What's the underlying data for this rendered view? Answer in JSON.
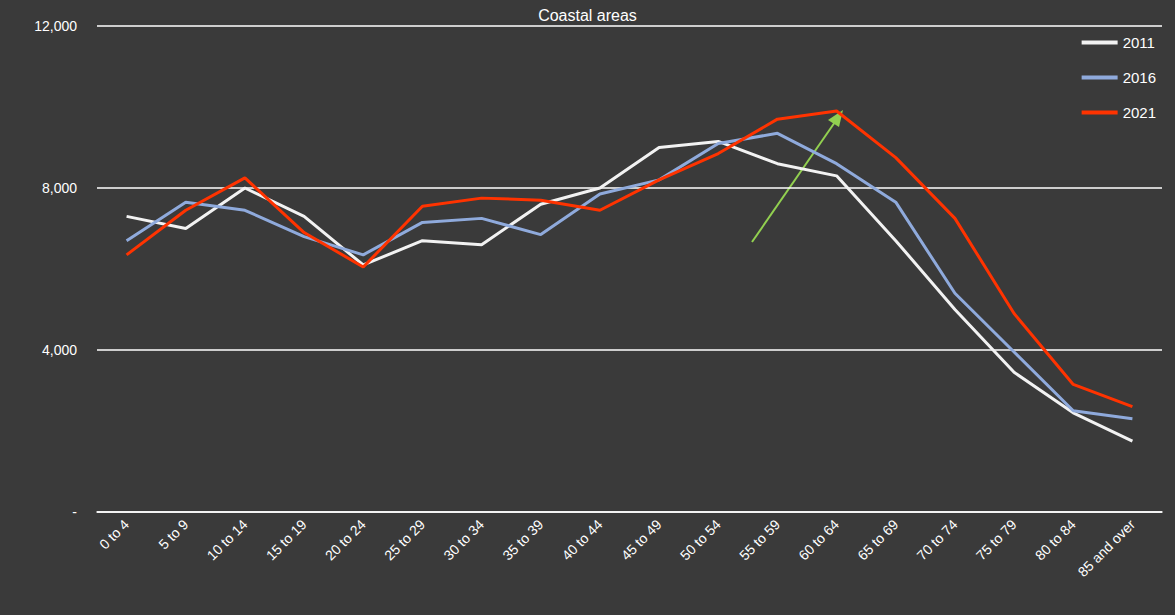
{
  "chart_data": {
    "type": "line",
    "title": "Coastal areas",
    "categories": [
      "0 to 4",
      "5 to 9",
      "10 to 14",
      "15 to 19",
      "20 to 24",
      "25 to 29",
      "30 to 34",
      "35 to 39",
      "40 to 44",
      "45 to 49",
      "50 to 54",
      "55 to 59",
      "60 to 64",
      "65 to 69",
      "70 to 74",
      "75 to 79",
      "80 to 84",
      "85 and over"
    ],
    "series": [
      {
        "name": "2011",
        "color": "#f2f2f2",
        "values": [
          7300,
          7000,
          8000,
          7300,
          6100,
          6700,
          6600,
          7600,
          8000,
          9000,
          9150,
          8600,
          8300,
          6700,
          5000,
          3450,
          2450,
          1750
        ]
      },
      {
        "name": "2016",
        "color": "#8faadc",
        "values": [
          6700,
          7650,
          7450,
          6800,
          6350,
          7150,
          7250,
          6850,
          7850,
          8200,
          9100,
          9350,
          8600,
          7650,
          5400,
          3950,
          2500,
          2300
        ]
      },
      {
        "name": "2021",
        "color": "#ff3300",
        "values": [
          6350,
          7450,
          8250,
          6900,
          6050,
          7550,
          7750,
          7700,
          7450,
          8200,
          8850,
          9700,
          9900,
          8750,
          7250,
          4900,
          3150,
          2600
        ]
      }
    ],
    "ylim": [
      0,
      12000
    ],
    "yticks": [
      {
        "value": 0,
        "label": "-"
      },
      {
        "value": 4000,
        "label": "4,000"
      },
      {
        "value": 8000,
        "label": "8,000"
      },
      {
        "value": 12000,
        "label": "12,000"
      }
    ],
    "grid": true,
    "legend": "top-right"
  }
}
